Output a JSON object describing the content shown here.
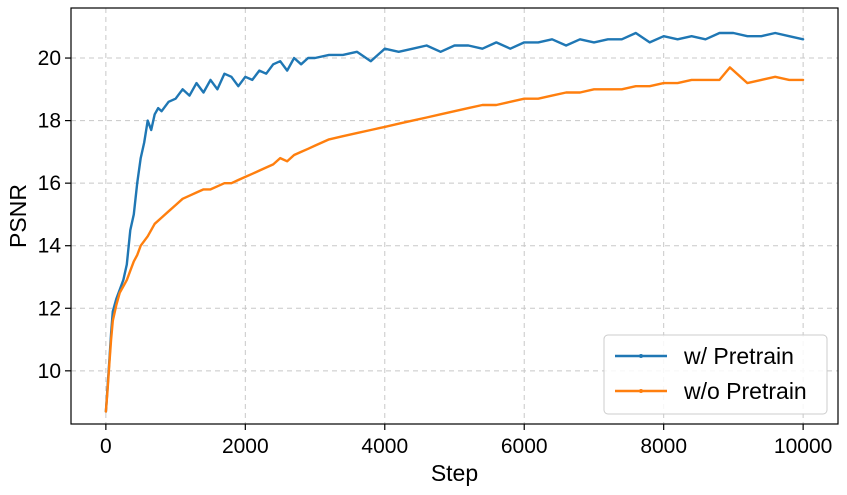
{
  "chart_data": {
    "type": "line",
    "title": "",
    "xlabel": "Step",
    "ylabel": "PSNR",
    "xlim": [
      -500,
      10500
    ],
    "ylim": [
      8.3,
      21.6
    ],
    "xticks": [
      0,
      2000,
      4000,
      6000,
      8000,
      10000
    ],
    "xtick_labels": [
      "0",
      "2000",
      "4000",
      "6000",
      "8000",
      "10000"
    ],
    "yticks": [
      10,
      12,
      14,
      16,
      18,
      20
    ],
    "ytick_labels": [
      "10",
      "12",
      "14",
      "16",
      "18",
      "20"
    ],
    "grid": true,
    "legend_position": "bottom-right",
    "series": [
      {
        "name": "w/ Pretrain",
        "color": "#1f77b4",
        "x": [
          0,
          25,
          50,
          75,
          100,
          150,
          200,
          250,
          300,
          350,
          400,
          450,
          500,
          550,
          600,
          650,
          700,
          750,
          800,
          900,
          1000,
          1100,
          1200,
          1300,
          1400,
          1500,
          1600,
          1700,
          1800,
          1900,
          2000,
          2100,
          2200,
          2300,
          2400,
          2500,
          2600,
          2700,
          2800,
          2900,
          3000,
          3200,
          3400,
          3600,
          3800,
          4000,
          4200,
          4400,
          4600,
          4800,
          5000,
          5200,
          5400,
          5600,
          5800,
          6000,
          6200,
          6400,
          6600,
          6800,
          7000,
          7200,
          7400,
          7600,
          7800,
          8000,
          8200,
          8400,
          8600,
          8800,
          9000,
          9200,
          9400,
          9600,
          9800,
          10000
        ],
        "values": [
          8.7,
          9.5,
          10.3,
          11.2,
          11.9,
          12.3,
          12.6,
          12.9,
          13.4,
          14.5,
          15.0,
          16.0,
          16.8,
          17.3,
          18.0,
          17.7,
          18.2,
          18.4,
          18.3,
          18.6,
          18.7,
          19.0,
          18.8,
          19.2,
          18.9,
          19.3,
          19.0,
          19.5,
          19.4,
          19.1,
          19.4,
          19.3,
          19.6,
          19.5,
          19.8,
          19.9,
          19.6,
          20.0,
          19.8,
          20.0,
          20.0,
          20.1,
          20.1,
          20.2,
          19.9,
          20.3,
          20.2,
          20.3,
          20.4,
          20.2,
          20.4,
          20.4,
          20.3,
          20.5,
          20.3,
          20.5,
          20.5,
          20.6,
          20.4,
          20.6,
          20.5,
          20.6,
          20.6,
          20.8,
          20.5,
          20.7,
          20.6,
          20.7,
          20.6,
          20.8,
          20.8,
          20.7,
          20.7,
          20.8,
          20.7,
          20.6
        ]
      },
      {
        "name": "w/o Pretrain",
        "color": "#ff7f0e",
        "x": [
          0,
          25,
          50,
          75,
          100,
          150,
          200,
          250,
          300,
          350,
          400,
          450,
          500,
          600,
          700,
          800,
          900,
          1000,
          1100,
          1200,
          1300,
          1400,
          1500,
          1600,
          1700,
          1800,
          1900,
          2000,
          2100,
          2200,
          2300,
          2400,
          2500,
          2600,
          2700,
          2800,
          2900,
          3000,
          3200,
          3400,
          3600,
          3800,
          4000,
          4200,
          4400,
          4600,
          4800,
          5000,
          5200,
          5400,
          5600,
          5800,
          6000,
          6200,
          6400,
          6600,
          6800,
          7000,
          7200,
          7400,
          7600,
          7800,
          8000,
          8200,
          8400,
          8600,
          8800,
          8950,
          9100,
          9200,
          9400,
          9600,
          9800,
          10000
        ],
        "values": [
          8.7,
          9.4,
          10.2,
          11.0,
          11.6,
          12.1,
          12.5,
          12.7,
          12.9,
          13.2,
          13.5,
          13.7,
          14.0,
          14.3,
          14.7,
          14.9,
          15.1,
          15.3,
          15.5,
          15.6,
          15.7,
          15.8,
          15.8,
          15.9,
          16.0,
          16.0,
          16.1,
          16.2,
          16.3,
          16.4,
          16.5,
          16.6,
          16.8,
          16.7,
          16.9,
          17.0,
          17.1,
          17.2,
          17.4,
          17.5,
          17.6,
          17.7,
          17.8,
          17.9,
          18.0,
          18.1,
          18.2,
          18.3,
          18.4,
          18.5,
          18.5,
          18.6,
          18.7,
          18.7,
          18.8,
          18.9,
          18.9,
          19.0,
          19.0,
          19.0,
          19.1,
          19.1,
          19.2,
          19.2,
          19.3,
          19.3,
          19.3,
          19.7,
          19.4,
          19.2,
          19.3,
          19.4,
          19.3,
          19.3
        ]
      }
    ]
  }
}
